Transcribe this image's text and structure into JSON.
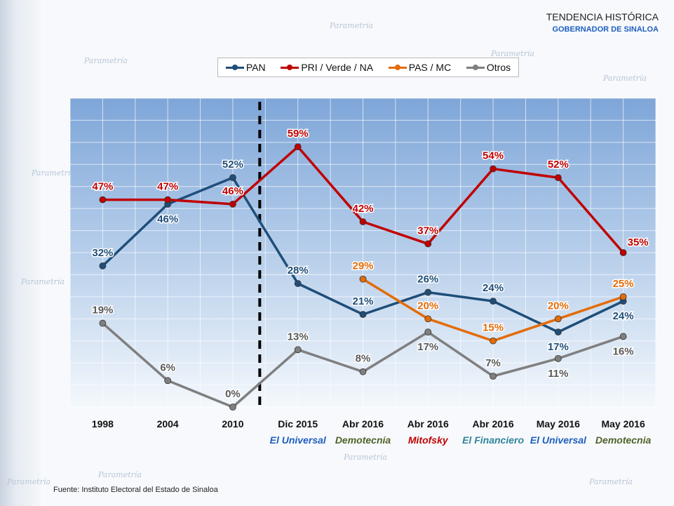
{
  "header": {
    "title": "TENDENCIA HISTÓRICA",
    "subtitle": "GOBERNADOR DE SINALOA"
  },
  "watermark": "Parametría",
  "source": "Fuente: Instituto Electoral del Estado de Sinaloa",
  "chart_data": {
    "type": "line",
    "title": "",
    "categories": [
      "1998",
      "2004",
      "2010",
      "Dic 2015",
      "Abr 2016",
      "Abr 2016",
      "Abr 2016",
      "May 2016",
      "May 2016"
    ],
    "sublabels": [
      {
        "text": "",
        "color": "#1f5fbf"
      },
      {
        "text": "",
        "color": "#1f5fbf"
      },
      {
        "text": "",
        "color": "#1f5fbf"
      },
      {
        "text": "El Universal",
        "color": "#1f5fbf"
      },
      {
        "text": "Demotecnia",
        "color": "#4f6228"
      },
      {
        "text": "Mitofsky",
        "color": "#c00000"
      },
      {
        "text": "El Financiero",
        "color": "#31849b"
      },
      {
        "text": "El Universal",
        "color": "#1f5fbf"
      },
      {
        "text": "Demotecnia",
        "color": "#4f6228"
      }
    ],
    "ylim": [
      0,
      70
    ],
    "grid": true,
    "divider_after_index": 2,
    "legend_position": "top",
    "series": [
      {
        "name": "PAN",
        "color": "#1f4e79",
        "label_color": "#1f4e79",
        "values": [
          32,
          46,
          52,
          28,
          21,
          26,
          24,
          17,
          24
        ],
        "labels": [
          "32%",
          "46%",
          "52%",
          "28%",
          "21%",
          "26%",
          "24%",
          "17%",
          "24%"
        ],
        "label_pos": [
          "above",
          "below",
          "above",
          "above",
          "above",
          "above",
          "above",
          "below",
          "below"
        ]
      },
      {
        "name": "PRI / Verde / NA",
        "color": "#c00000",
        "label_color": "#c00000",
        "values": [
          47,
          47,
          46,
          59,
          42,
          37,
          54,
          52,
          35
        ],
        "labels": [
          "47%",
          "47%",
          "46%",
          "59%",
          "42%",
          "37%",
          "54%",
          "52%",
          "35%"
        ],
        "label_pos": [
          "above",
          "above",
          "above",
          "above",
          "above",
          "above",
          "above",
          "above",
          "above-right"
        ]
      },
      {
        "name": "PAS / MC",
        "color": "#e36c09",
        "label_color": "#e36c09",
        "values": [
          null,
          null,
          null,
          null,
          29,
          20,
          15,
          20,
          25
        ],
        "labels": [
          "",
          "",
          "",
          "",
          "29%",
          "20%",
          "15%",
          "20%",
          "25%"
        ],
        "label_pos": [
          "",
          "",
          "",
          "",
          "above",
          "above",
          "above",
          "above",
          "above"
        ]
      },
      {
        "name": "Otros",
        "color": "#7f7f7f",
        "label_color": "#595959",
        "values": [
          19,
          6,
          0,
          13,
          8,
          17,
          7,
          11,
          16
        ],
        "labels": [
          "19%",
          "6%",
          "0%",
          "13%",
          "8%",
          "17%",
          "7%",
          "11%",
          "16%"
        ],
        "label_pos": [
          "above",
          "above",
          "above",
          "above",
          "above",
          "below",
          "above",
          "below",
          "below"
        ]
      }
    ]
  }
}
